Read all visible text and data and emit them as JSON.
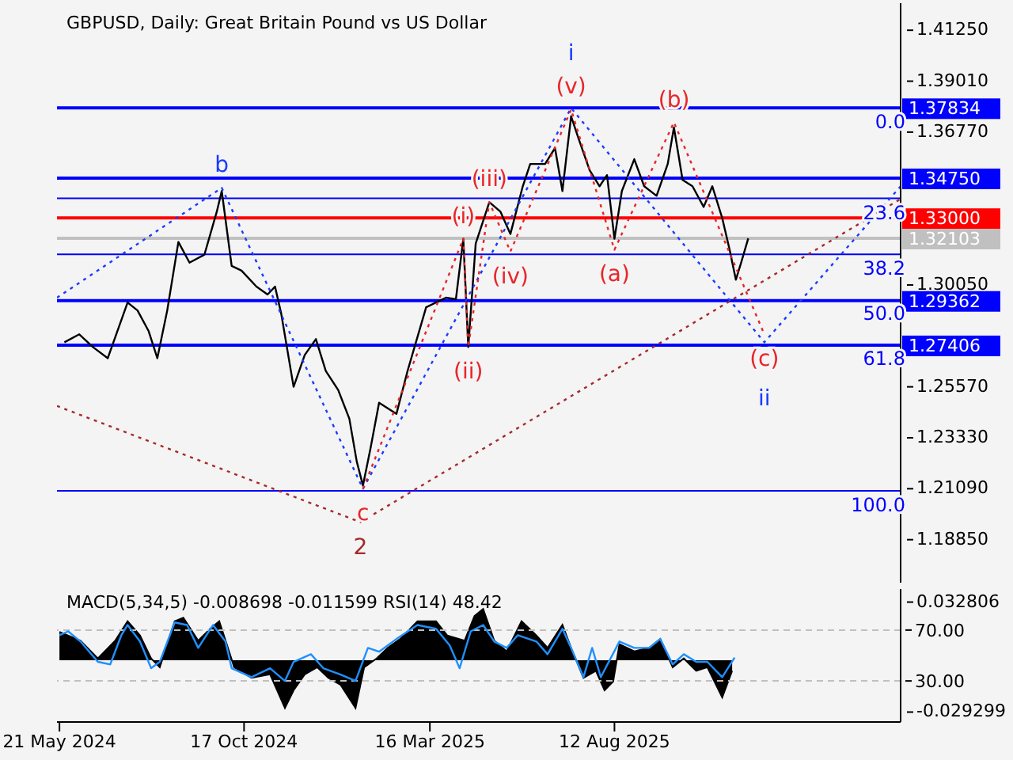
{
  "chart_data": [
    {
      "type": "line",
      "title": "GBPUSD, Daily:  Great Britain Pound vs US Dollar",
      "xlim": [
        "2024-05-19",
        "2026-03-31"
      ],
      "tick_labels": "y",
      "ylim": [
        1.1696,
        1.4244
      ],
      "yticks": [
        {
          "value": 1.4125,
          "label": "1.41250"
        },
        {
          "value": 1.3901,
          "label": "1.39010"
        },
        {
          "value": 1.3677,
          "label": "1.36770"
        },
        {
          "value": 1.3005,
          "label": "1.30050"
        },
        {
          "value": 1.2557,
          "label": "1.25570"
        },
        {
          "value": 1.2333,
          "label": "1.23330"
        },
        {
          "value": 1.2109,
          "label": "1.21090"
        },
        {
          "value": 1.1885,
          "label": "1.18850"
        }
      ],
      "grid": false,
      "legend": false,
      "series": [
        {
          "color": "#000000",
          "line_style": "solid",
          "x": [
            "2024-05-25",
            "2024-06-06",
            "2024-06-17",
            "2024-06-29",
            "2024-07-15",
            "2024-07-23",
            "2024-08-01",
            "2024-08-08",
            "2024-08-16",
            "2024-08-25",
            "2024-09-03",
            "2024-09-15",
            "2024-09-25",
            "2024-09-29",
            "2024-10-07",
            "2024-10-15",
            "2024-10-27",
            "2024-11-05",
            "2024-11-11",
            "2024-11-16",
            "2024-11-26",
            "2024-12-05",
            "2024-12-14",
            "2024-12-22",
            "2025-01-01",
            "2025-01-10",
            "2025-01-16",
            "2025-01-21",
            "2025-01-27",
            "2025-02-03",
            "2025-02-17",
            "2025-02-26",
            "2025-03-13",
            "2025-03-29",
            "2025-04-06",
            "2025-04-12",
            "2025-04-16",
            "2025-04-22",
            "2025-05-03",
            "2025-05-12",
            "2025-05-20",
            "2025-05-30",
            "2025-06-05",
            "2025-06-17",
            "2025-06-25",
            "2025-07-01",
            "2025-07-08",
            "2025-07-14",
            "2025-07-23",
            "2025-07-31",
            "2025-08-06",
            "2025-08-12",
            "2025-08-18",
            "2025-08-28",
            "2025-09-05",
            "2025-09-15",
            "2025-09-24",
            "2025-09-29",
            "2025-10-06",
            "2025-10-14",
            "2025-10-23",
            "2025-10-30",
            "2025-11-07",
            "2025-11-13",
            "2025-11-18",
            "2025-11-22",
            "2025-11-28"
          ],
          "values": [
            1.2753,
            1.2788,
            1.2732,
            1.2683,
            1.2928,
            1.2893,
            1.2802,
            1.2683,
            1.2893,
            1.3194,
            1.3103,
            1.3138,
            1.3327,
            1.3418,
            1.3089,
            1.3068,
            1.2998,
            1.2963,
            1.2998,
            1.2879,
            1.2557,
            1.2697,
            1.2767,
            1.2627,
            1.2543,
            1.2417,
            1.2228,
            1.2123,
            1.2284,
            1.2487,
            1.2438,
            1.2627,
            1.2907,
            1.2949,
            1.2942,
            1.3208,
            1.2732,
            1.3187,
            1.3369,
            1.3327,
            1.3229,
            1.3439,
            1.3537,
            1.3537,
            1.3607,
            1.3418,
            1.3747,
            1.3649,
            1.3509,
            1.3439,
            1.3488,
            1.3208,
            1.3418,
            1.3558,
            1.3439,
            1.3397,
            1.3537,
            1.3698,
            1.3467,
            1.3439,
            1.3348,
            1.3439,
            1.3299,
            1.3159,
            1.3028,
            1.3098,
            1.321
          ]
        },
        {
          "color": "#1a3cff",
          "line_style": "dotted",
          "x": [
            "2024-05-19",
            "2024-09-29",
            "2025-01-21",
            "2025-07-08",
            "2025-12-11",
            "2026-03-31"
          ],
          "values": [
            1.2949,
            1.3432,
            1.2109,
            1.3783,
            1.2753,
            1.3439
          ]
        },
        {
          "color": "#e8262a",
          "line_style": "dotted",
          "x": [
            "2025-01-21",
            "2025-04-12",
            "2025-04-16",
            "2025-05-03",
            "2025-05-20",
            "2025-07-08",
            "2025-08-12",
            "2025-09-29",
            "2025-12-11"
          ],
          "values": [
            1.2109,
            1.3208,
            1.2732,
            1.3369,
            1.3152,
            1.3776,
            1.316,
            1.372,
            1.2788
          ]
        },
        {
          "color": "#a52a2a",
          "line_style": "dotted",
          "x": [
            "2024-05-19",
            "2025-01-19",
            "2026-03-31"
          ],
          "values": [
            1.2473,
            1.1962,
            1.3383
          ]
        }
      ],
      "ref_lines": [
        {
          "axis": "y",
          "value": 1.37834,
          "label": "1.37834",
          "color": "#0000ff"
        },
        {
          "axis": "y",
          "value": 1.3475,
          "label": "1.34750",
          "color": "#0000ff"
        },
        {
          "axis": "y",
          "value": 1.33,
          "label": "1.33000",
          "color": "#ff0000"
        },
        {
          "axis": "y",
          "value": 1.32103,
          "label": "1.32103",
          "color": "#c0c0c0"
        },
        {
          "axis": "y",
          "value": 1.29362,
          "label": "1.29362",
          "color": "#0000ff"
        },
        {
          "axis": "y",
          "value": 1.27406,
          "label": "1.27406",
          "color": "#0000ff"
        },
        {
          "axis": "y2",
          "value": 23.6,
          "color": "#0000ff"
        },
        {
          "axis": "y2",
          "value": 38.2,
          "color": "#0000ff"
        },
        {
          "axis": "y2",
          "value": 100,
          "color": "#0000ff"
        }
      ],
      "y2lim": [
        124.0,
        -27.4
      ],
      "y2ticks": [
        {
          "value": 0,
          "label": "0.0"
        },
        23.6,
        38.2,
        {
          "value": 50,
          "label": "50.0"
        },
        61.8,
        {
          "value": 100,
          "label": "100.0"
        }
      ],
      "annotations": [
        {
          "text": "b",
          "x": "2024-09-29",
          "y": 1.3432
        },
        {
          "text": "(v)",
          "x": "2025-07-08",
          "y": 1.3776
        },
        {
          "text": "i",
          "x": "2025-07-08",
          "y": 1.3783
        },
        {
          "text": "(c)",
          "x": "2025-12-11",
          "y": 1.2788
        },
        {
          "text": "ii",
          "x": "2025-12-11",
          "y": 1.2753
        },
        {
          "text": "c",
          "x": "2025-01-21",
          "y": 1.2109
        },
        {
          "text": "2",
          "x": "2025-01-19",
          "y": 1.1962
        },
        {
          "text": "(i)",
          "x": "2025-04-12",
          "y": 1.3208
        },
        {
          "text": "(ii)",
          "x": "2025-04-16",
          "y": 1.2732
        },
        {
          "text": "(iii)",
          "x": "2025-05-03",
          "y": 1.3369
        },
        {
          "text": "(iv)",
          "x": "2025-05-20",
          "y": 1.3152
        },
        {
          "text": "(a)",
          "x": "2025-08-12",
          "y": 1.316
        },
        {
          "text": "(b)",
          "x": "2025-09-29",
          "y": 1.372
        }
      ]
    },
    {
      "type": "area",
      "title": "MACD(5,34,5) -0.008698 -0.011599 RSI(14) 48.42",
      "xlim": [
        "2024-05-19",
        "2026-03-31"
      ],
      "xticks": [
        {
          "value": "2024-05-21",
          "label": "21 May 2024"
        },
        {
          "value": "2024-10-17",
          "label": "17 Oct 2024"
        },
        {
          "value": "2025-03-16",
          "label": "16 Mar 2025"
        },
        {
          "value": "2025-08-12",
          "label": "12 Aug 2025"
        }
      ],
      "ylim": [
        -0.0349,
        0.0402
      ],
      "yticks": [
        0.032806,
        -0.029299
      ],
      "y2lim": [
        -2.3,
        102.3
      ],
      "y2ticks": [
        {
          "value": 70,
          "label": "70.00"
        },
        {
          "value": 30,
          "label": "30.00"
        }
      ],
      "grid": false,
      "legend": false,
      "ref_lines": [
        {
          "axis": "y2",
          "value": 70,
          "color": "#c0c0c0",
          "line_style": "dashed"
        },
        {
          "axis": "y2",
          "value": 30,
          "color": "#c0c0c0",
          "line_style": "dashed"
        }
      ],
      "series": [
        {
          "color": "#000000",
          "x": [
            "2024-05-21",
            "2024-06-07",
            "2024-06-21",
            "2024-07-05",
            "2024-07-15",
            "2024-07-25",
            "2024-08-03",
            "2024-08-10",
            "2024-08-22",
            "2024-08-29",
            "2024-09-10",
            "2024-09-20",
            "2024-09-27",
            "2024-10-04",
            "2024-10-09",
            "2024-10-23",
            "2024-11-07",
            "2024-11-19",
            "2024-11-26",
            "2024-12-05",
            "2024-12-15",
            "2024-12-24",
            "2025-01-03",
            "2025-01-15",
            "2025-01-22",
            "2025-02-01",
            "2025-02-10",
            "2025-02-20",
            "2025-03-06",
            "2025-03-21",
            "2025-03-30",
            "2025-04-13",
            "2025-04-21",
            "2025-04-28",
            "2025-05-07",
            "2025-05-17",
            "2025-05-29",
            "2025-06-10",
            "2025-06-19",
            "2025-07-01",
            "2025-07-08",
            "2025-07-18",
            "2025-07-28",
            "2025-08-04",
            "2025-08-11",
            "2025-08-16",
            "2025-08-28",
            "2025-09-09",
            "2025-09-18",
            "2025-09-28",
            "2025-10-07",
            "2025-10-17",
            "2025-10-26",
            "2025-11-07",
            "2025-11-15"
          ],
          "values": [
            0.016,
            0.011,
            0.001,
            0.011,
            0.022,
            0.014,
            0.001,
            -0.004,
            0.022,
            0.024,
            0.011,
            0.018,
            0.022,
            0.007,
            -0.004,
            -0.01,
            -0.008,
            -0.027,
            -0.017,
            -0.008,
            -0.004,
            -0.01,
            -0.014,
            -0.027,
            -0.004,
            0.001,
            0.007,
            0.012,
            0.022,
            0.022,
            0.014,
            0.011,
            0.025,
            0.029,
            0.011,
            0.005,
            0.022,
            0.014,
            0.007,
            0.02,
            0.007,
            -0.01,
            -0.006,
            -0.017,
            -0.012,
            0.009,
            0.005,
            0.007,
            0.012,
            -0.004,
            0.001,
            -0.006,
            -0.004,
            -0.021,
            -0.006
          ]
        },
        {
          "type": "line",
          "axis": "y2",
          "color": "#1e90ff",
          "x": [
            "2024-05-21",
            "2024-05-28",
            "2024-06-07",
            "2024-06-21",
            "2024-07-01",
            "2024-07-10",
            "2024-07-15",
            "2024-07-25",
            "2024-08-03",
            "2024-08-10",
            "2024-08-22",
            "2024-09-01",
            "2024-09-10",
            "2024-09-22",
            "2024-10-02",
            "2024-10-07",
            "2024-10-23",
            "2024-11-07",
            "2024-11-19",
            "2024-11-26",
            "2024-12-10",
            "2024-12-20",
            "2025-01-03",
            "2025-01-15",
            "2025-01-25",
            "2025-02-03",
            "2025-02-17",
            "2025-03-06",
            "2025-03-21",
            "2025-04-01",
            "2025-04-09",
            "2025-04-18",
            "2025-04-28",
            "2025-05-07",
            "2025-05-17",
            "2025-05-26",
            "2025-06-10",
            "2025-06-19",
            "2025-07-01",
            "2025-07-08",
            "2025-07-18",
            "2025-07-25",
            "2025-08-01",
            "2025-08-16",
            "2025-08-28",
            "2025-09-09",
            "2025-09-18",
            "2025-09-28",
            "2025-10-07",
            "2025-10-17",
            "2025-10-26",
            "2025-11-07",
            "2025-11-17"
          ],
          "values": [
            66,
            69,
            61,
            45,
            43,
            66,
            74,
            61,
            40,
            45,
            76,
            74,
            56,
            74,
            61,
            40,
            33,
            40,
            30,
            45,
            51,
            40,
            35,
            30,
            56,
            53,
            63,
            74,
            71,
            58,
            40,
            69,
            74,
            61,
            56,
            66,
            61,
            51,
            71,
            56,
            33,
            56,
            33,
            61,
            56,
            56,
            63,
            43,
            51,
            45,
            45,
            33,
            48.42
          ]
        }
      ]
    }
  ]
}
